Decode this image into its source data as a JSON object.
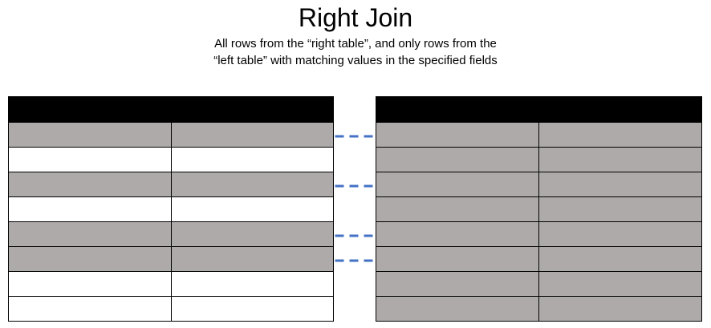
{
  "title": "Right Join",
  "subtitle": {
    "line1": "All rows from the “right table”, and only rows from the",
    "line2": "“left table” with matching values in the specified fields"
  },
  "colors": {
    "header": "#000000",
    "matched_row": "#aeaaaa",
    "unmatched_row": "#ffffff",
    "link": "#4472c4"
  },
  "left_table": {
    "columns": 2,
    "rows_matched": [
      true,
      false,
      true,
      false,
      true,
      true,
      false,
      false
    ]
  },
  "right_table": {
    "columns": 2,
    "rows_matched": [
      true,
      true,
      true,
      true,
      true,
      true,
      true,
      true
    ]
  },
  "links": [
    {
      "left_row": 0,
      "right_row": 0
    },
    {
      "left_row": 2,
      "right_row": 2
    },
    {
      "left_row": 4,
      "right_row": 4
    },
    {
      "left_row": 5,
      "right_row": 5
    }
  ]
}
